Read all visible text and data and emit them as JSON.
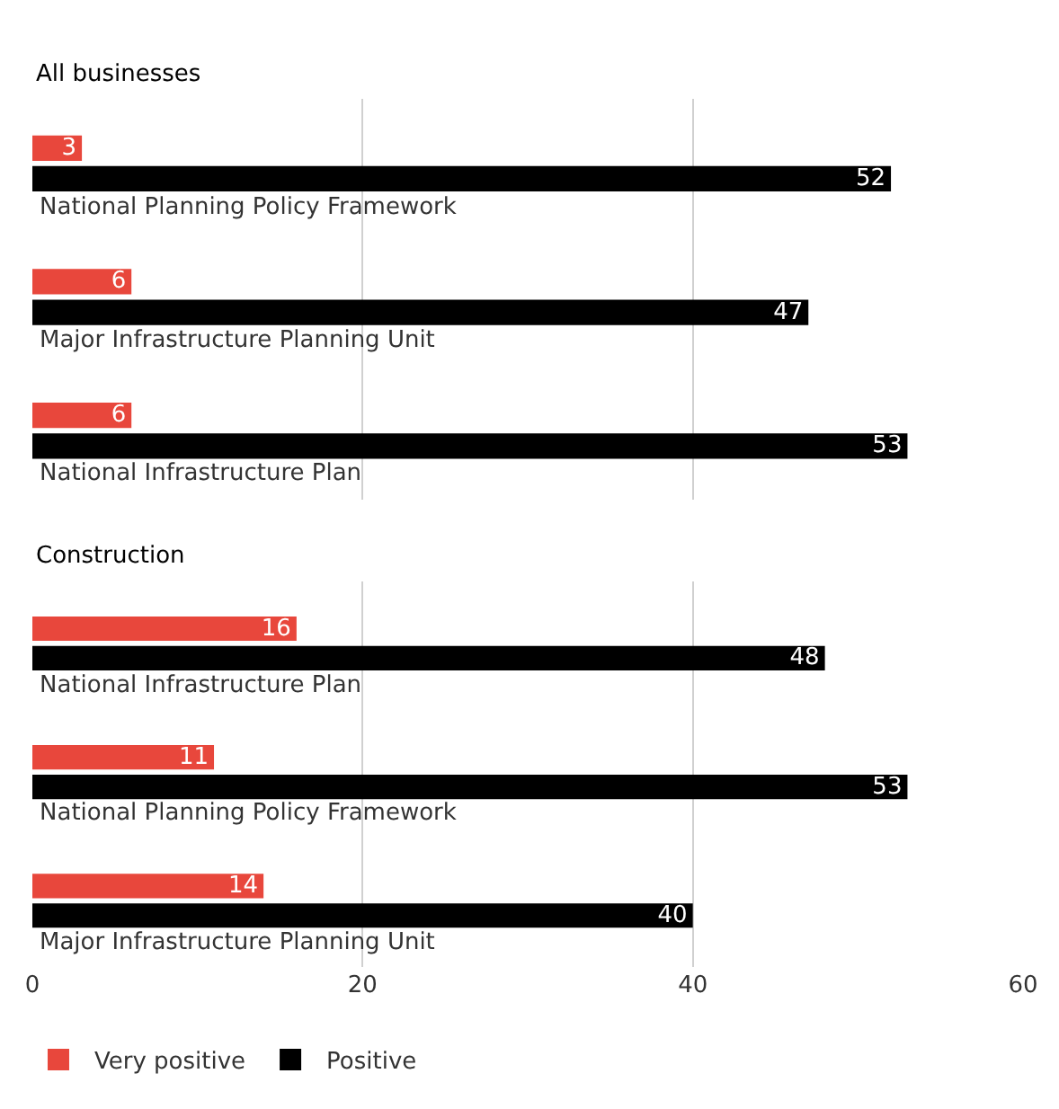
{
  "chart_data": [
    {
      "type": "bar",
      "orientation": "horizontal",
      "title": "All businesses",
      "categories": [
        "National Planning Policy Framework",
        "Major Infrastructure Planning Unit",
        "National Infrastructure Plan"
      ],
      "series": [
        {
          "color": "#e8473c",
          "values": [
            3,
            6,
            6
          ]
        },
        {
          "color": "#000000",
          "values": [
            52,
            47,
            53
          ]
        }
      ],
      "xlim": [
        0,
        60
      ],
      "xticks": [
        0,
        20,
        40,
        60
      ],
      "grid": "x",
      "data_labels": true,
      "tick_labels": "y",
      "legend": false
    },
    {
      "type": "bar",
      "orientation": "horizontal",
      "title": "Construction",
      "categories": [
        "National Infrastructure Plan",
        "National Planning Policy Framework",
        "Major Infrastructure Planning Unit"
      ],
      "series": [
        {
          "name": "Very positive",
          "color": "#e8473c",
          "values": [
            16,
            11,
            14
          ]
        },
        {
          "name": "Positive",
          "color": "#000000",
          "values": [
            48,
            53,
            40
          ]
        }
      ],
      "xlim": [
        0,
        60
      ],
      "xticks": [
        0,
        20,
        40,
        60
      ],
      "grid": "x",
      "data_labels": true,
      "legend": "bottom"
    }
  ]
}
